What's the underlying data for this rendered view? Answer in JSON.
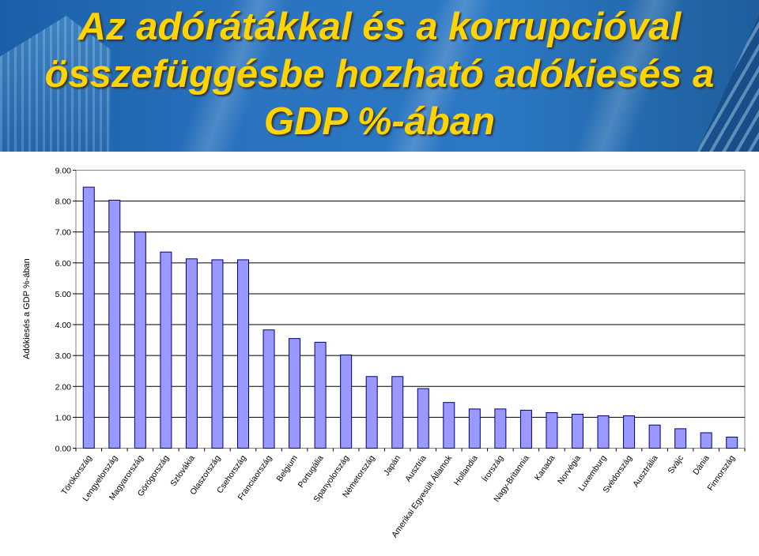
{
  "title": {
    "lines": [
      "Az adórátákkal és a korrupcióval",
      "összefüggésbe hozható adókiesés a",
      "GDP %-ában"
    ]
  },
  "colors": {
    "title": "#ffd400",
    "bar_fill": "#9999ff",
    "bar_stroke": "#000080",
    "header_blue": "#2a74c0"
  },
  "chart_data": {
    "type": "bar",
    "ylabel": "Adókiesés a GDP %-ában",
    "xlabel": "",
    "ylim": [
      0,
      9
    ],
    "yticks": [
      "0.00",
      "1.00",
      "2.00",
      "3.00",
      "4.00",
      "5.00",
      "6.00",
      "7.00",
      "8.00",
      "9.00"
    ],
    "grid": true,
    "categories": [
      "Törökország",
      "Lengyelország",
      "Magyarország",
      "Görögország",
      "Szlovákia",
      "Olaszország",
      "Csehország",
      "Franciaország",
      "Belgium",
      "Portugália",
      "Spanyolország",
      "Németország",
      "Japán",
      "Ausztria",
      "Amerikai Egyesült Államok",
      "Hollandia",
      "Írország",
      "Nagy-Britannia",
      "Kanada",
      "Norvégia",
      "Luxemburg",
      "Svédország",
      "Ausztrália",
      "Svájc",
      "Dánia",
      "Finnország"
    ],
    "values": [
      8.45,
      8.03,
      7.0,
      6.35,
      6.13,
      6.1,
      6.1,
      3.83,
      3.55,
      3.43,
      3.02,
      2.32,
      2.32,
      1.93,
      1.48,
      1.27,
      1.27,
      1.23,
      1.15,
      1.1,
      1.05,
      1.05,
      0.75,
      0.63,
      0.5,
      0.36
    ]
  }
}
